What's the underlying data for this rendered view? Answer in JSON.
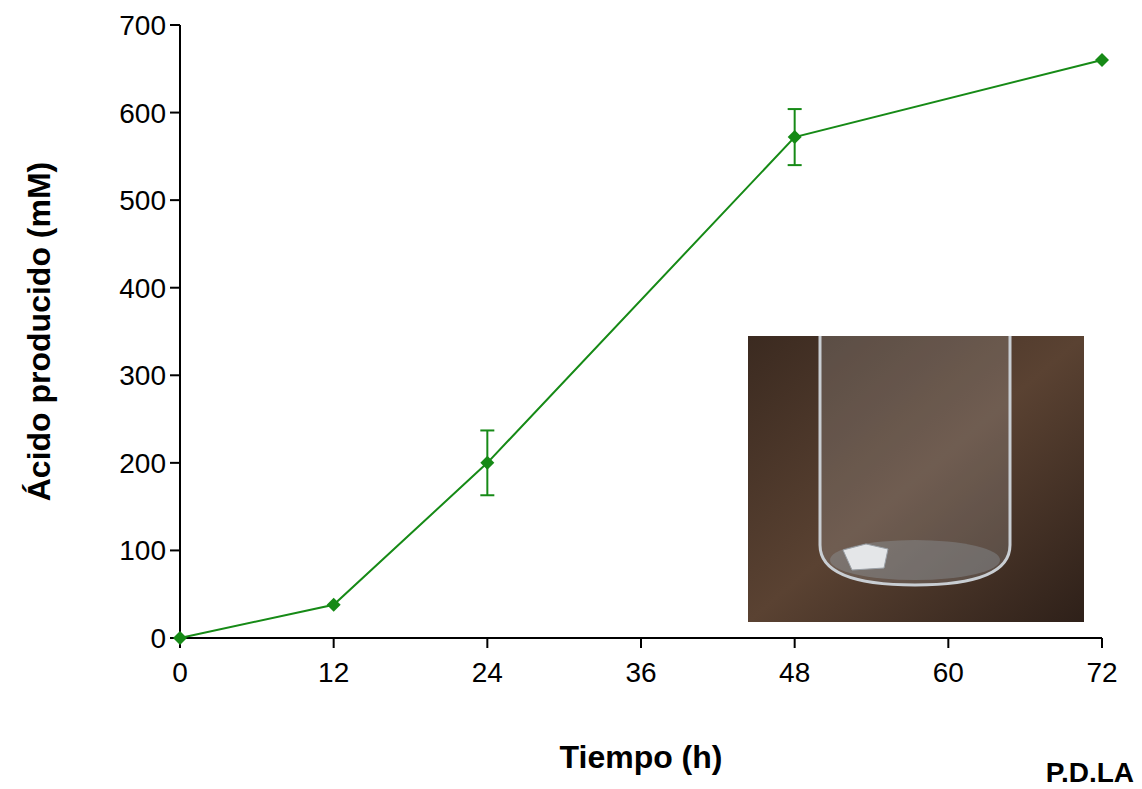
{
  "chart_data": {
    "type": "line",
    "x_label": "Tiempo (h)",
    "y_label": "Ácido producido (mM)",
    "x": [
      0,
      12,
      24,
      48,
      72
    ],
    "series": [
      {
        "color": "#168a16",
        "marker": "diamond",
        "values": [
          0,
          38,
          200,
          572,
          660
        ],
        "errors": [
          null,
          null,
          37,
          32,
          null
        ]
      }
    ],
    "xlim": [
      0,
      72
    ],
    "xticks": [
      0,
      12,
      24,
      36,
      48,
      60,
      72
    ],
    "ylim": [
      0,
      700
    ],
    "yticks": [
      0,
      100,
      200,
      300,
      400,
      500,
      600,
      700
    ],
    "grid": false,
    "annotation": "P.D.LA"
  }
}
